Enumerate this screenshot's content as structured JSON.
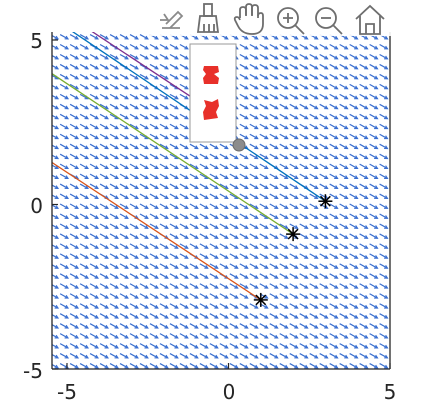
{
  "toolbar": {
    "buttons": [
      {
        "name": "edit-plot-icon"
      },
      {
        "name": "brush-icon"
      },
      {
        "name": "pan-hand-icon"
      },
      {
        "name": "zoom-in-icon"
      },
      {
        "name": "zoom-out-icon"
      },
      {
        "name": "home-icon"
      }
    ]
  },
  "colors": {
    "axes": "#262626",
    "field_arrows": "#3a6fd0",
    "marker": "#000000",
    "legend_swatch": "#e8302a",
    "toolbar_icons": "#7a7a7a"
  },
  "chart_data": {
    "type": "line",
    "title": "",
    "xlabel": "",
    "ylabel": "",
    "xlim": [
      -5.5,
      5
    ],
    "ylim": [
      -5,
      5.2
    ],
    "xticks": [
      -5,
      0,
      5
    ],
    "yticks": [
      -5,
      0,
      5
    ],
    "xtick_labels": [
      "-5",
      "0",
      "5"
    ],
    "ytick_labels": [
      "-5",
      "0",
      "5"
    ],
    "grid": false,
    "legend_position": "top-center",
    "vector_field": {
      "description_direction": [
        1,
        -0.55
      ],
      "x_range": [
        -5.4,
        4.8
      ],
      "y_range": [
        -4.9,
        5.1
      ],
      "nx": 34,
      "ny": 34
    },
    "series": [
      {
        "color": "#0072bd",
        "x": [
          -5.2,
          3.0
        ],
        "y": [
          5.5,
          0.1
        ]
      },
      {
        "color": "#7e2f8e",
        "x": [
          -4.6,
          -1.2
        ],
        "y": [
          5.5,
          3.3
        ]
      },
      {
        "color": "#77ac30",
        "x": [
          -5.5,
          2.0
        ],
        "y": [
          4.0,
          -0.9
        ]
      },
      {
        "color": "#d95319",
        "x": [
          -5.5,
          1.0
        ],
        "y": [
          1.3,
          -2.9
        ]
      }
    ],
    "markers": [
      {
        "x": 3.0,
        "y": 0.1
      },
      {
        "x": 2.0,
        "y": -0.9
      },
      {
        "x": 1.0,
        "y": -2.9
      }
    ],
    "datatip": {
      "x": 0.3,
      "y": 1.8
    }
  }
}
